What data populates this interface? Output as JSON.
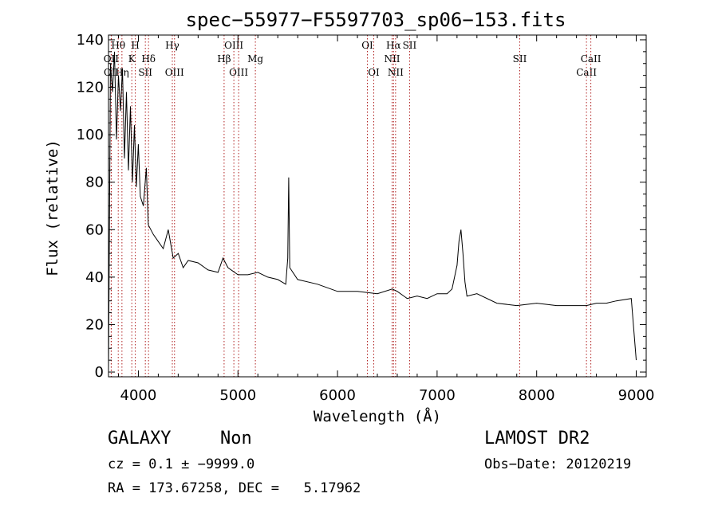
{
  "chart_data": {
    "type": "line",
    "title": "spec−55977−F5597703_sp06−153.fits",
    "xlabel": "Wavelength (Å)",
    "ylabel": "Flux (relative)",
    "xlim": [
      3700,
      9100
    ],
    "ylim": [
      -2,
      142
    ],
    "xticks": [
      4000,
      5000,
      6000,
      7000,
      8000,
      9000
    ],
    "yticks": [
      0,
      20,
      40,
      60,
      80,
      100,
      120,
      140
    ],
    "grid": false,
    "series": [
      {
        "name": "flux",
        "x": [
          3700,
          3720,
          3740,
          3760,
          3780,
          3800,
          3820,
          3840,
          3860,
          3880,
          3900,
          3920,
          3940,
          3960,
          3980,
          4000,
          4020,
          4050,
          4080,
          4100,
          4150,
          4200,
          4250,
          4300,
          4350,
          4400,
          4450,
          4500,
          4600,
          4700,
          4800,
          4850,
          4900,
          5000,
          5100,
          5200,
          5300,
          5400,
          5480,
          5500,
          5510,
          5520,
          5600,
          5800,
          6000,
          6200,
          6400,
          6550,
          6600,
          6700,
          6800,
          6900,
          7000,
          7100,
          7150,
          7200,
          7220,
          7240,
          7260,
          7280,
          7300,
          7400,
          7600,
          7800,
          8000,
          8200,
          8400,
          8500,
          8600,
          8700,
          8800,
          8950,
          9000
        ],
        "y": [
          0,
          130,
          118,
          135,
          98,
          125,
          110,
          128,
          90,
          118,
          85,
          112,
          80,
          104,
          78,
          96,
          74,
          70,
          86,
          62,
          58,
          55,
          52,
          60,
          48,
          50,
          44,
          47,
          46,
          43,
          42,
          48,
          44,
          41,
          41,
          42,
          40,
          39,
          37,
          48,
          82,
          44,
          39,
          37,
          34,
          34,
          33,
          35,
          34,
          31,
          32,
          31,
          33,
          33,
          35,
          45,
          55,
          60,
          50,
          38,
          32,
          33,
          29,
          28,
          29,
          28,
          28,
          28,
          29,
          29,
          30,
          31,
          5
        ]
      }
    ],
    "line_markers": [
      {
        "label": "OII",
        "x": 3727,
        "row": 1
      },
      {
        "label": "OII",
        "x": 3729,
        "row": 2
      },
      {
        "label": "Hθ",
        "x": 3798,
        "row": 0
      },
      {
        "label": "Hη",
        "x": 3835,
        "row": 2
      },
      {
        "label": "K",
        "x": 3934,
        "row": 1
      },
      {
        "label": "H",
        "x": 3969,
        "row": 0
      },
      {
        "label": "Hδ",
        "x": 4102,
        "row": 1
      },
      {
        "label": "SII",
        "x": 4070,
        "row": 2
      },
      {
        "label": "Hγ",
        "x": 4341,
        "row": 0
      },
      {
        "label": "OIII",
        "x": 4363,
        "row": 2
      },
      {
        "label": "Hβ",
        "x": 4861,
        "row": 1
      },
      {
        "label": "OIII",
        "x": 4959,
        "row": 0
      },
      {
        "label": "OIII",
        "x": 5007,
        "row": 2
      },
      {
        "label": "Mg",
        "x": 5175,
        "row": 1
      },
      {
        "label": "OI",
        "x": 6300,
        "row": 0
      },
      {
        "label": "OI",
        "x": 6364,
        "row": 2
      },
      {
        "label": "NII",
        "x": 6548,
        "row": 1
      },
      {
        "label": "Hα",
        "x": 6563,
        "row": 0
      },
      {
        "label": "NII",
        "x": 6583,
        "row": 2
      },
      {
        "label": "SII",
        "x": 6724,
        "row": 0
      },
      {
        "label": "SII",
        "x": 7830,
        "row": 1
      },
      {
        "label": "CaII",
        "x": 8500,
        "row": 2
      },
      {
        "label": "CaII",
        "x": 8544,
        "row": 1
      }
    ]
  },
  "info": {
    "object_class": "GALAXY",
    "subclass": "Non",
    "survey": "LAMOST DR2",
    "cz": "cz = 0.1 ± −9999.0",
    "obs_date": "Obs−Date: 20120219",
    "coords": "RA = 173.67258, DEC =   5.17962"
  }
}
